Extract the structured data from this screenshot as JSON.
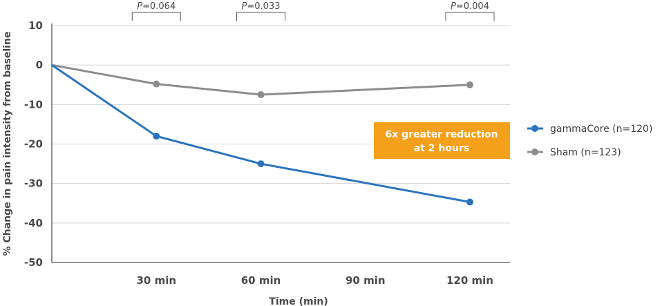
{
  "chart_data": {
    "type": "line",
    "title": "",
    "xlabel": "Time (min)",
    "ylabel": "% Change in pain intensity from baseline",
    "x": [
      0,
      30,
      60,
      90,
      120
    ],
    "x_tick_labels": [
      "",
      "30 min",
      "60 min",
      "90 min",
      "120 min"
    ],
    "ylim": [
      -50,
      10
    ],
    "y_ticks": [
      10,
      0,
      -10,
      -20,
      -30,
      -40,
      -50
    ],
    "y_tick_labels": [
      "10",
      "0",
      "-10",
      "-20",
      "-30",
      "-40",
      "-50"
    ],
    "grid": "horizontal",
    "legend_position": "right",
    "series": [
      {
        "name": "gammaCore (n=120)",
        "color": "#2b74bd",
        "x": [
          0,
          30,
          60,
          120
        ],
        "values": [
          0,
          -18,
          -25,
          -34.7
        ]
      },
      {
        "name": "Sham (n=123)",
        "color": "#8c8c8c",
        "x": [
          0,
          30,
          60,
          120
        ],
        "values": [
          0,
          -4.8,
          -7.5,
          -5
        ]
      }
    ],
    "p_values": [
      {
        "label": "P=0.064",
        "x": 30
      },
      {
        "label": "P=0.033",
        "x": 60
      },
      {
        "label": "P=0.004",
        "x": 120
      }
    ],
    "callout": {
      "lines": [
        "6x greater reduction",
        "at 2 hours"
      ],
      "color": "#f5a01a"
    }
  }
}
